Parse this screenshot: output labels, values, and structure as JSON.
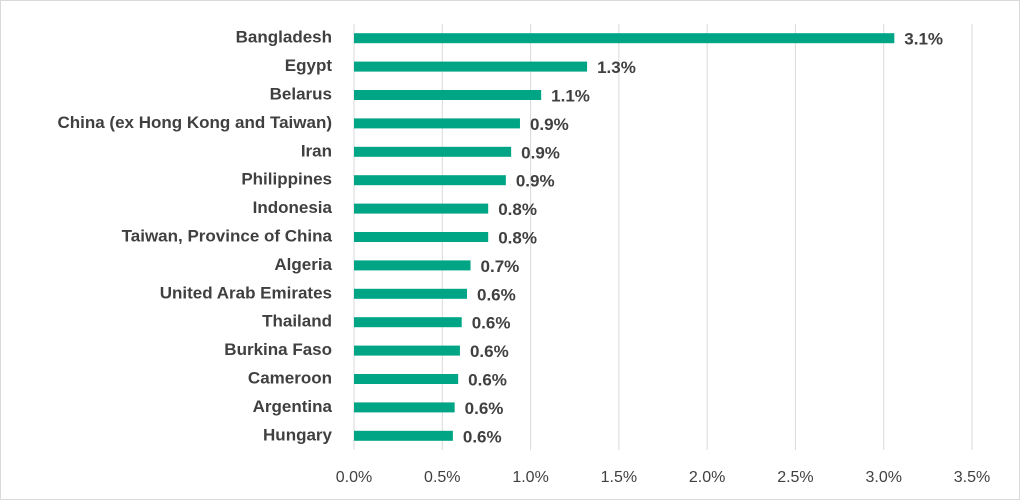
{
  "chart_data": {
    "type": "hbar",
    "categories": [
      "Bangladesh",
      "Egypt",
      "Belarus",
      "China (ex Hong Kong and Taiwan)",
      "Iran",
      "Philippines",
      "Indonesia",
      "Taiwan, Province of China",
      "Algeria",
      "United Arab Emirates",
      "Thailand",
      "Burkina Faso",
      "Cameroon",
      "Argentina",
      "Hungary"
    ],
    "values": [
      3.06,
      1.32,
      1.06,
      0.94,
      0.89,
      0.86,
      0.76,
      0.76,
      0.66,
      0.64,
      0.61,
      0.6,
      0.59,
      0.57,
      0.56
    ],
    "value_labels": [
      "3.1%",
      "1.3%",
      "1.1%",
      "0.9%",
      "0.9%",
      "0.9%",
      "0.8%",
      "0.8%",
      "0.7%",
      "0.6%",
      "0.6%",
      "0.6%",
      "0.6%",
      "0.6%",
      "0.6%"
    ],
    "color": "#00a585",
    "xlim": [
      0,
      3.5
    ],
    "xticks": [
      {
        "value": 0,
        "label": "0.0%"
      },
      {
        "value": 0.5,
        "label": "0.5%"
      },
      {
        "value": 1,
        "label": "1.0%"
      },
      {
        "value": 1.5,
        "label": "1.5%"
      },
      {
        "value": 2,
        "label": "2.0%"
      },
      {
        "value": 2.5,
        "label": "2.5%"
      },
      {
        "value": 3,
        "label": "3.0%"
      },
      {
        "value": 3.5,
        "label": "3.5%"
      }
    ],
    "grid": true
  }
}
